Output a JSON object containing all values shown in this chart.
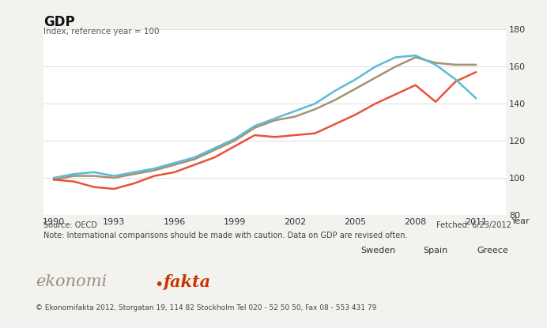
{
  "title": "GDP",
  "subtitle": "Index, reference year = 100",
  "xlabel": "Year",
  "ylim": [
    80,
    180
  ],
  "yticks": [
    80,
    100,
    120,
    140,
    160,
    180
  ],
  "source_text": "Source: OECD\nNote: International comparisons should be made with caution. Data on GDP are revised often.",
  "fetch_text": "Fetched: 6/23/2012",
  "copyright_text": "© Ekonomifakta 2012, Storgatan 19, 114 82 Stockholm Tel 020 - 52 50 50, Fax 08 - 553 431 79",
  "years": [
    1990,
    1991,
    1992,
    1993,
    1994,
    1995,
    1996,
    1997,
    1998,
    1999,
    2000,
    2001,
    2002,
    2003,
    2004,
    2005,
    2006,
    2007,
    2008,
    2009,
    2010,
    2011
  ],
  "sweden": [
    99,
    98,
    95,
    94,
    97,
    101,
    103,
    107,
    111,
    117,
    123,
    122,
    123,
    124,
    129,
    134,
    140,
    145,
    150,
    141,
    152,
    157
  ],
  "spain": [
    99,
    101,
    101,
    100,
    102,
    104,
    107,
    110,
    115,
    120,
    127,
    131,
    133,
    137,
    142,
    148,
    154,
    160,
    165,
    162,
    161,
    161
  ],
  "greece": [
    100,
    102,
    103,
    101,
    103,
    105,
    108,
    111,
    116,
    121,
    128,
    132,
    136,
    140,
    147,
    153,
    160,
    165,
    166,
    161,
    153,
    143
  ],
  "sweden_color": "#E8533A",
  "spain_color": "#A89070",
  "greece_color": "#5BBCD6",
  "bg_color": "#F2F2EE",
  "plot_bg_color": "#FFFFFF",
  "grid_color": "#DDDDDD",
  "line_width": 1.8,
  "legend_sweden": "Sweden",
  "legend_spain": "Spain",
  "legend_greece": "Greece",
  "footer_bar_color": "#9C8E7E",
  "logo_ekonomi_color": "#9C8E7E",
  "logo_fakta_color": "#CC3300",
  "logo_dot_color": "#CC3300",
  "xticks": [
    1990,
    1993,
    1996,
    1999,
    2002,
    2005,
    2008,
    2011
  ],
  "xlim": [
    1989.5,
    2012.5
  ]
}
